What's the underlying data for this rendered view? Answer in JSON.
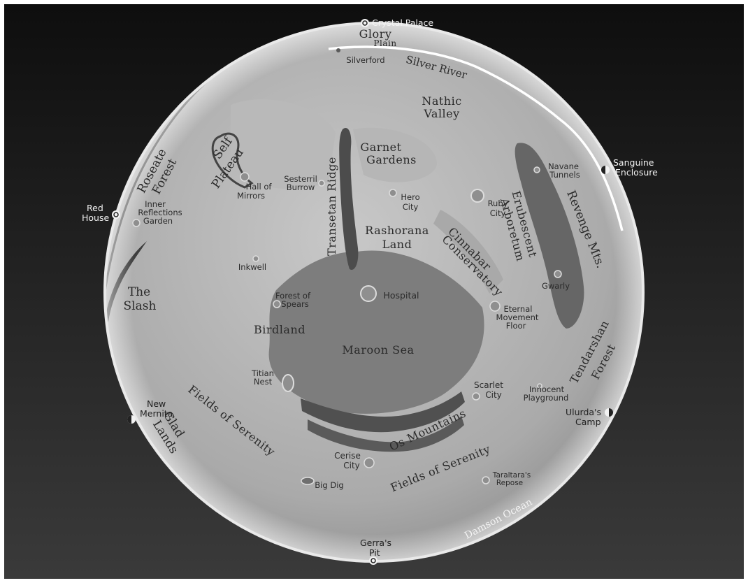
{
  "map": {
    "colors": {
      "background_top": "#0e0e0e",
      "background_bottom": "#3a3a3a",
      "globe_light": "#c8c8c8",
      "globe_dark": "#8e8e8e",
      "sea": "#7d7d7d",
      "mountains": "#505050",
      "river": "#ffffff",
      "label": "#2a2a2a"
    },
    "regions": {
      "glory_plain_1": "Glory",
      "glory_plain_2": "Plain",
      "silver_river": "Silver River",
      "nathic_1": "Nathic",
      "nathic_2": "Valley",
      "garnet_1": "Garnet",
      "garnet_2": "Gardens",
      "self_plateau_1": "Self",
      "self_plateau_2": "Plateau",
      "roseate_1": "Roseate",
      "roseate_2": "Forest",
      "transetan_ridge": "Transetan Ridge",
      "rashorana_1": "Rashorana",
      "rashorana_2": "Land",
      "cinnabar_1": "Cinnabar",
      "cinnabar_2": "Conservatory",
      "erubescent_1": "Erubescent",
      "erubescent_2": "Arboretum",
      "revenge_mts": "Revenge Mts.",
      "the_slash_1": "The",
      "the_slash_2": "Slash",
      "birdland": "Birdland",
      "maroon_sea": "Maroon Sea",
      "tendarshan_1": "Tendarshan",
      "tendarshan_2": "Forest",
      "fields_left": "Fields of Serenity",
      "fields_right": "Fields of Serenity",
      "os_mountains": "Os Mountains",
      "glad_1": "Glad",
      "glad_2": "Lands",
      "damson_ocean": "Damson Ocean"
    },
    "places": {
      "silverford": "Silverford",
      "sesterril_1": "Sesterril",
      "sesterril_2": "Burrow",
      "hall_1": "Hall of",
      "hall_2": "Mirrors",
      "inner_1": "Inner",
      "inner_2": "Reflections",
      "inner_3": "Garden",
      "hero_1": "Hero",
      "hero_2": "City",
      "ruby_1": "Ruby",
      "ruby_2": "City",
      "navane_1": "Navane",
      "navane_2": "Tunnels",
      "inkwell": "Inkwell",
      "hospital": "Hospital",
      "gwarly": "Gwarly",
      "forest_1": "Forest of",
      "forest_2": "Spears",
      "eternal_1": "Eternal",
      "eternal_2": "Movement",
      "eternal_3": "Floor",
      "titian_1": "Titian",
      "titian_2": "Nest",
      "scarlet_1": "Scarlet",
      "scarlet_2": "City",
      "innocent_1": "Innocent",
      "innocent_2": "Playground",
      "cerise_1": "Cerise",
      "cerise_2": "City",
      "big_dig": "Big Dig",
      "taraltara_1": "Taraltara's",
      "taraltara_2": "Repose"
    },
    "edge_locations": {
      "crystal_palace": "Crystal Palace",
      "sanguine_1": "Sanguine",
      "sanguine_2": "Enclosure",
      "red_1": "Red",
      "red_2": "House",
      "ulurda_1": "Ulurda's",
      "ulurda_2": "Camp",
      "new_1": "New",
      "new_2": "Mernita",
      "gerra_1": "Gerra's",
      "gerra_2": "Pit"
    }
  }
}
